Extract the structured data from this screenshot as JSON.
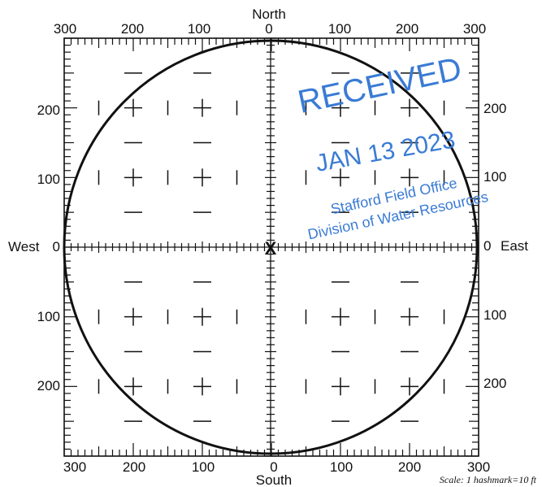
{
  "directions": {
    "north": "North",
    "south": "South",
    "west": "West",
    "east": "East"
  },
  "ticks": {
    "top": [
      "300",
      "200",
      "100",
      "0",
      "100",
      "200",
      "300"
    ],
    "bottom": [
      "300",
      "200",
      "100",
      "0",
      "100",
      "200",
      "300"
    ],
    "left": [
      "200",
      "100",
      "0",
      "100",
      "200"
    ],
    "right": [
      "200",
      "100",
      "0",
      "100",
      "200"
    ]
  },
  "center_marker": "X",
  "scale_note": "Scale: 1 hashmark=10 ft",
  "stamp": {
    "received": "RECEIVED",
    "date": "JAN 13 2023",
    "office": "Stafford Field Office",
    "division": "Division of Water Resources",
    "color": "#3a7bd5"
  }
}
